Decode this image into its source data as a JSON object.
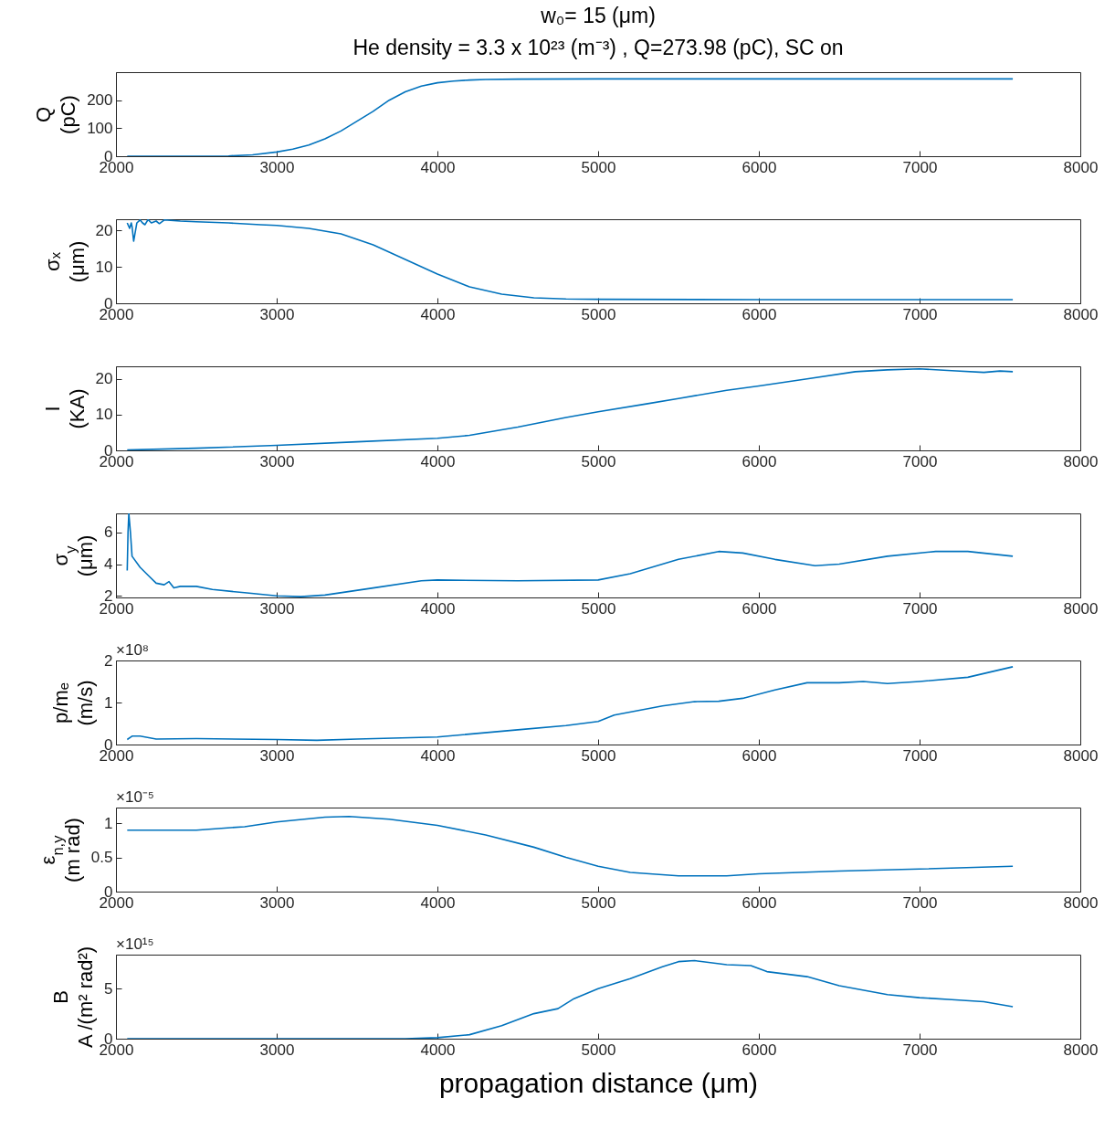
{
  "chart_data": [
    {
      "type": "line",
      "title": "w₀= 15 (μm)",
      "subtitle": "He density = 3.3 x 10²³ (m⁻³) , Q=273.98 (pC), SC on",
      "ylabel": "Q\n(pC)",
      "color": "#0072bd",
      "xlim": [
        2000,
        8000
      ],
      "xticks": [
        2000,
        3000,
        4000,
        5000,
        6000,
        7000,
        8000
      ],
      "ylim": [
        0,
        300
      ],
      "yticks": [
        0,
        100,
        200
      ],
      "grid": false,
      "x": [
        2070,
        2500,
        2700,
        2850,
        3000,
        3100,
        3200,
        3300,
        3400,
        3500,
        3600,
        3700,
        3800,
        3900,
        4000,
        4100,
        4200,
        4300,
        4500,
        5000,
        6000,
        7000,
        7580
      ],
      "values": [
        0,
        0,
        1,
        5,
        15,
        25,
        40,
        62,
        90,
        125,
        160,
        200,
        230,
        250,
        262,
        268,
        272,
        274,
        275,
        276,
        276,
        276,
        276
      ]
    },
    {
      "type": "line",
      "ylabel": "σₓ\n(μm)",
      "color": "#0072bd",
      "xlim": [
        2000,
        8000
      ],
      "xticks": [
        2000,
        3000,
        4000,
        5000,
        6000,
        7000,
        8000
      ],
      "ylim": [
        0,
        23
      ],
      "yticks": [
        0,
        10,
        20
      ],
      "grid": false,
      "x": [
        2070,
        2080,
        2085,
        2095,
        2100,
        2110,
        2130,
        2150,
        2165,
        2180,
        2200,
        2220,
        2250,
        2270,
        2300,
        2400,
        2500,
        2700,
        2900,
        3000,
        3200,
        3400,
        3600,
        3800,
        4000,
        4200,
        4400,
        4600,
        4800,
        5000,
        6000,
        7000,
        7580
      ],
      "values": [
        22,
        21,
        20.5,
        22,
        21,
        17,
        22,
        22.8,
        22,
        21.5,
        22.9,
        22,
        22.5,
        21.8,
        22.8,
        22.5,
        22.3,
        22,
        21.5,
        21.3,
        20.5,
        19,
        16,
        12,
        8,
        4.5,
        2.5,
        1.5,
        1.2,
        1.1,
        1,
        1,
        1
      ]
    },
    {
      "type": "line",
      "ylabel": "I\n(KA)",
      "color": "#0072bd",
      "xlim": [
        2000,
        8000
      ],
      "xticks": [
        2000,
        3000,
        4000,
        5000,
        6000,
        7000,
        8000
      ],
      "ylim": [
        0,
        23.5
      ],
      "yticks": [
        0,
        10,
        20
      ],
      "grid": false,
      "x": [
        2070,
        2500,
        3000,
        3500,
        4000,
        4200,
        4500,
        4800,
        5000,
        5300,
        5500,
        5800,
        6000,
        6300,
        6600,
        6800,
        7000,
        7200,
        7400,
        7500,
        7580
      ],
      "values": [
        0.1,
        0.6,
        1.4,
        2.4,
        3.4,
        4.2,
        6.5,
        9.2,
        10.8,
        13,
        14.5,
        16.8,
        18,
        20,
        22,
        22.5,
        22.8,
        22.3,
        21.8,
        22.2,
        22
      ]
    },
    {
      "type": "line",
      "ylabel": "σ$_{y}$\n(μm)",
      "color": "#0072bd",
      "xlim": [
        2000,
        8000
      ],
      "xticks": [
        2000,
        3000,
        4000,
        5000,
        6000,
        7000,
        8000
      ],
      "ylim": [
        1.9,
        7.2
      ],
      "yticks": [
        2,
        4,
        6
      ],
      "grid": false,
      "x": [
        2070,
        2075,
        2080,
        2090,
        2100,
        2150,
        2200,
        2250,
        2300,
        2330,
        2360,
        2400,
        2500,
        2600,
        2800,
        3000,
        3150,
        3300,
        3600,
        3900,
        4000,
        4500,
        5000,
        5200,
        5500,
        5750,
        5900,
        6100,
        6350,
        6500,
        6800,
        7100,
        7300,
        7580
      ],
      "values": [
        3.6,
        6,
        7.2,
        6,
        4.5,
        3.8,
        3.3,
        2.8,
        2.7,
        2.9,
        2.5,
        2.6,
        2.6,
        2.4,
        2.2,
        2,
        1.95,
        2.05,
        2.5,
        2.95,
        3,
        2.95,
        3,
        3.4,
        4.3,
        4.8,
        4.7,
        4.3,
        3.9,
        4,
        4.5,
        4.8,
        4.8,
        4.5
      ]
    },
    {
      "type": "line",
      "ylabel": "p/mₑ\n(m/s)",
      "color": "#0072bd",
      "annotations": [
        "×10⁸"
      ],
      "xlim": [
        2000,
        8000
      ],
      "xticks": [
        2000,
        3000,
        4000,
        5000,
        6000,
        7000,
        8000
      ],
      "ylim": [
        0,
        2
      ],
      "yticks": [
        0,
        1,
        2
      ],
      "grid": false,
      "x": [
        2070,
        2100,
        2150,
        2250,
        2500,
        3000,
        3250,
        3500,
        4000,
        4500,
        4800,
        5000,
        5100,
        5400,
        5600,
        5750,
        5900,
        6100,
        6300,
        6500,
        6650,
        6800,
        7000,
        7300,
        7580
      ],
      "values": [
        0.12,
        0.2,
        0.2,
        0.13,
        0.14,
        0.12,
        0.1,
        0.13,
        0.18,
        0.35,
        0.45,
        0.55,
        0.7,
        0.92,
        1.02,
        1.03,
        1.1,
        1.3,
        1.47,
        1.47,
        1.5,
        1.45,
        1.5,
        1.6,
        1.85
      ]
    },
    {
      "type": "line",
      "ylabel": "ε$_{n,y}$\n(m rad)",
      "color": "#0072bd",
      "annotations": [
        "×10⁻⁵"
      ],
      "xlim": [
        2000,
        8000
      ],
      "xticks": [
        2000,
        3000,
        4000,
        5000,
        6000,
        7000,
        8000
      ],
      "ylim": [
        0,
        1.23
      ],
      "yticks": [
        0,
        0.5,
        1
      ],
      "grid": false,
      "x": [
        2070,
        2500,
        2800,
        3000,
        3300,
        3450,
        3700,
        4000,
        4300,
        4600,
        4800,
        5000,
        5200,
        5500,
        5800,
        6000,
        6500,
        7000,
        7580
      ],
      "values": [
        0.9,
        0.9,
        0.95,
        1.02,
        1.09,
        1.1,
        1.06,
        0.97,
        0.83,
        0.65,
        0.5,
        0.37,
        0.28,
        0.23,
        0.23,
        0.26,
        0.3,
        0.33,
        0.37
      ]
    },
    {
      "type": "line",
      "ylabel": "B\nA /(m² rad²)",
      "xlabel": "propagation distance (μm)",
      "color": "#0072bd",
      "annotations": [
        "×10¹⁵"
      ],
      "xlim": [
        2000,
        8000
      ],
      "xticks": [
        2000,
        3000,
        4000,
        5000,
        6000,
        7000,
        8000
      ],
      "ylim": [
        0,
        8.4
      ],
      "yticks": [
        0,
        5
      ],
      "grid": false,
      "x": [
        2070,
        3800,
        4000,
        4200,
        4400,
        4600,
        4750,
        4850,
        5000,
        5200,
        5400,
        5500,
        5600,
        5800,
        5950,
        6050,
        6300,
        6500,
        6800,
        7000,
        7200,
        7400,
        7580
      ],
      "values": [
        0,
        0,
        0.1,
        0.4,
        1.3,
        2.5,
        3,
        4,
        5,
        6,
        7.2,
        7.7,
        7.8,
        7.4,
        7.3,
        6.7,
        6.2,
        5.3,
        4.4,
        4.1,
        3.9,
        3.7,
        3.2
      ]
    }
  ]
}
